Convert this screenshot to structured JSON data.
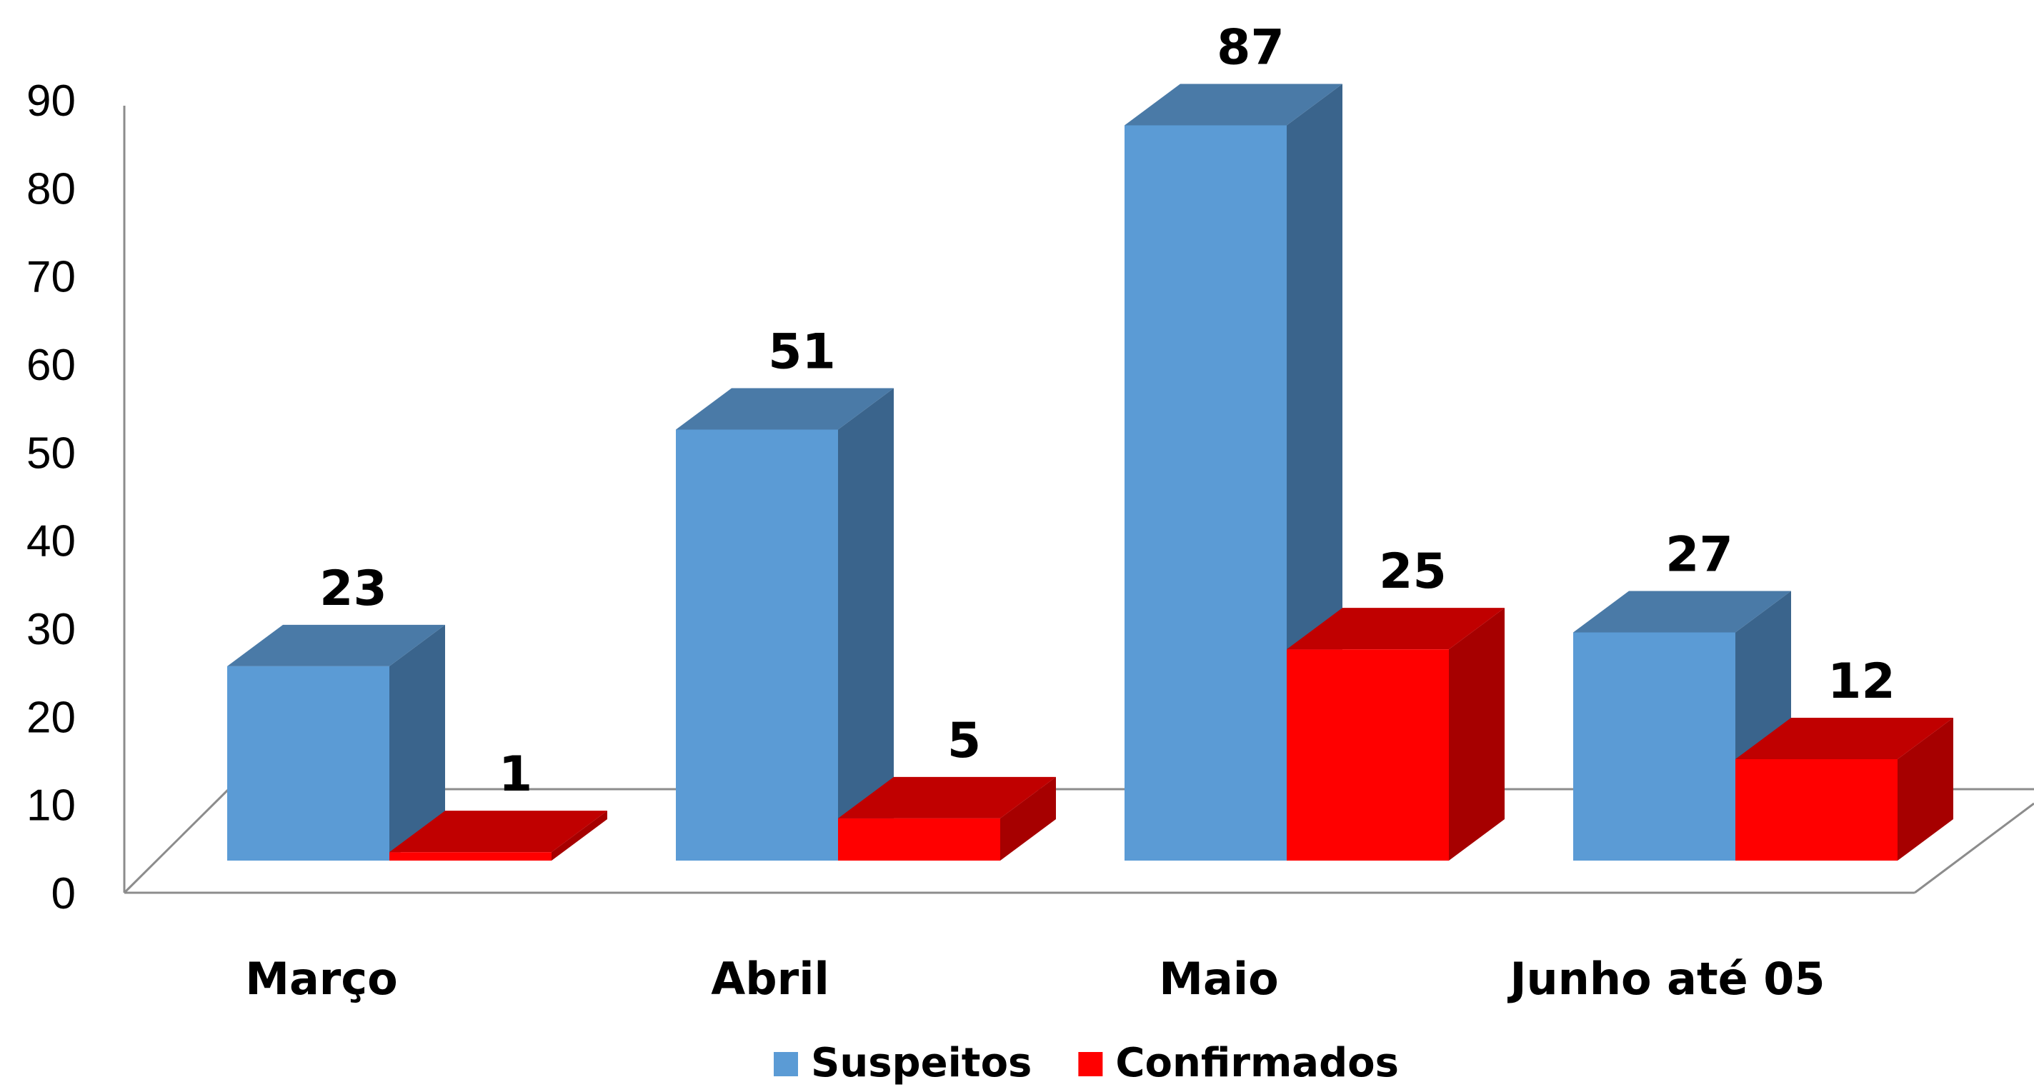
{
  "chart_data": {
    "type": "bar",
    "title": "",
    "xlabel": "",
    "ylabel": "",
    "categories": [
      "Março",
      "Abril",
      "Maio",
      "Junho até 05"
    ],
    "series": [
      {
        "name": "Suspeitos",
        "values": [
          23,
          51,
          87,
          27
        ],
        "color": "#5b9bd5",
        "side_color": "#3a648c",
        "top_color": "#4a7aa7"
      },
      {
        "name": "Confirmados",
        "values": [
          1,
          5,
          25,
          12
        ],
        "color": "#ff0000",
        "side_color": "#a60000",
        "top_color": "#c00000"
      }
    ],
    "ylim": [
      0,
      90
    ],
    "yticks": [
      0,
      10,
      20,
      30,
      40,
      50,
      60,
      70,
      80,
      90
    ],
    "legend": "bottom",
    "grid": false,
    "three_d": true
  }
}
